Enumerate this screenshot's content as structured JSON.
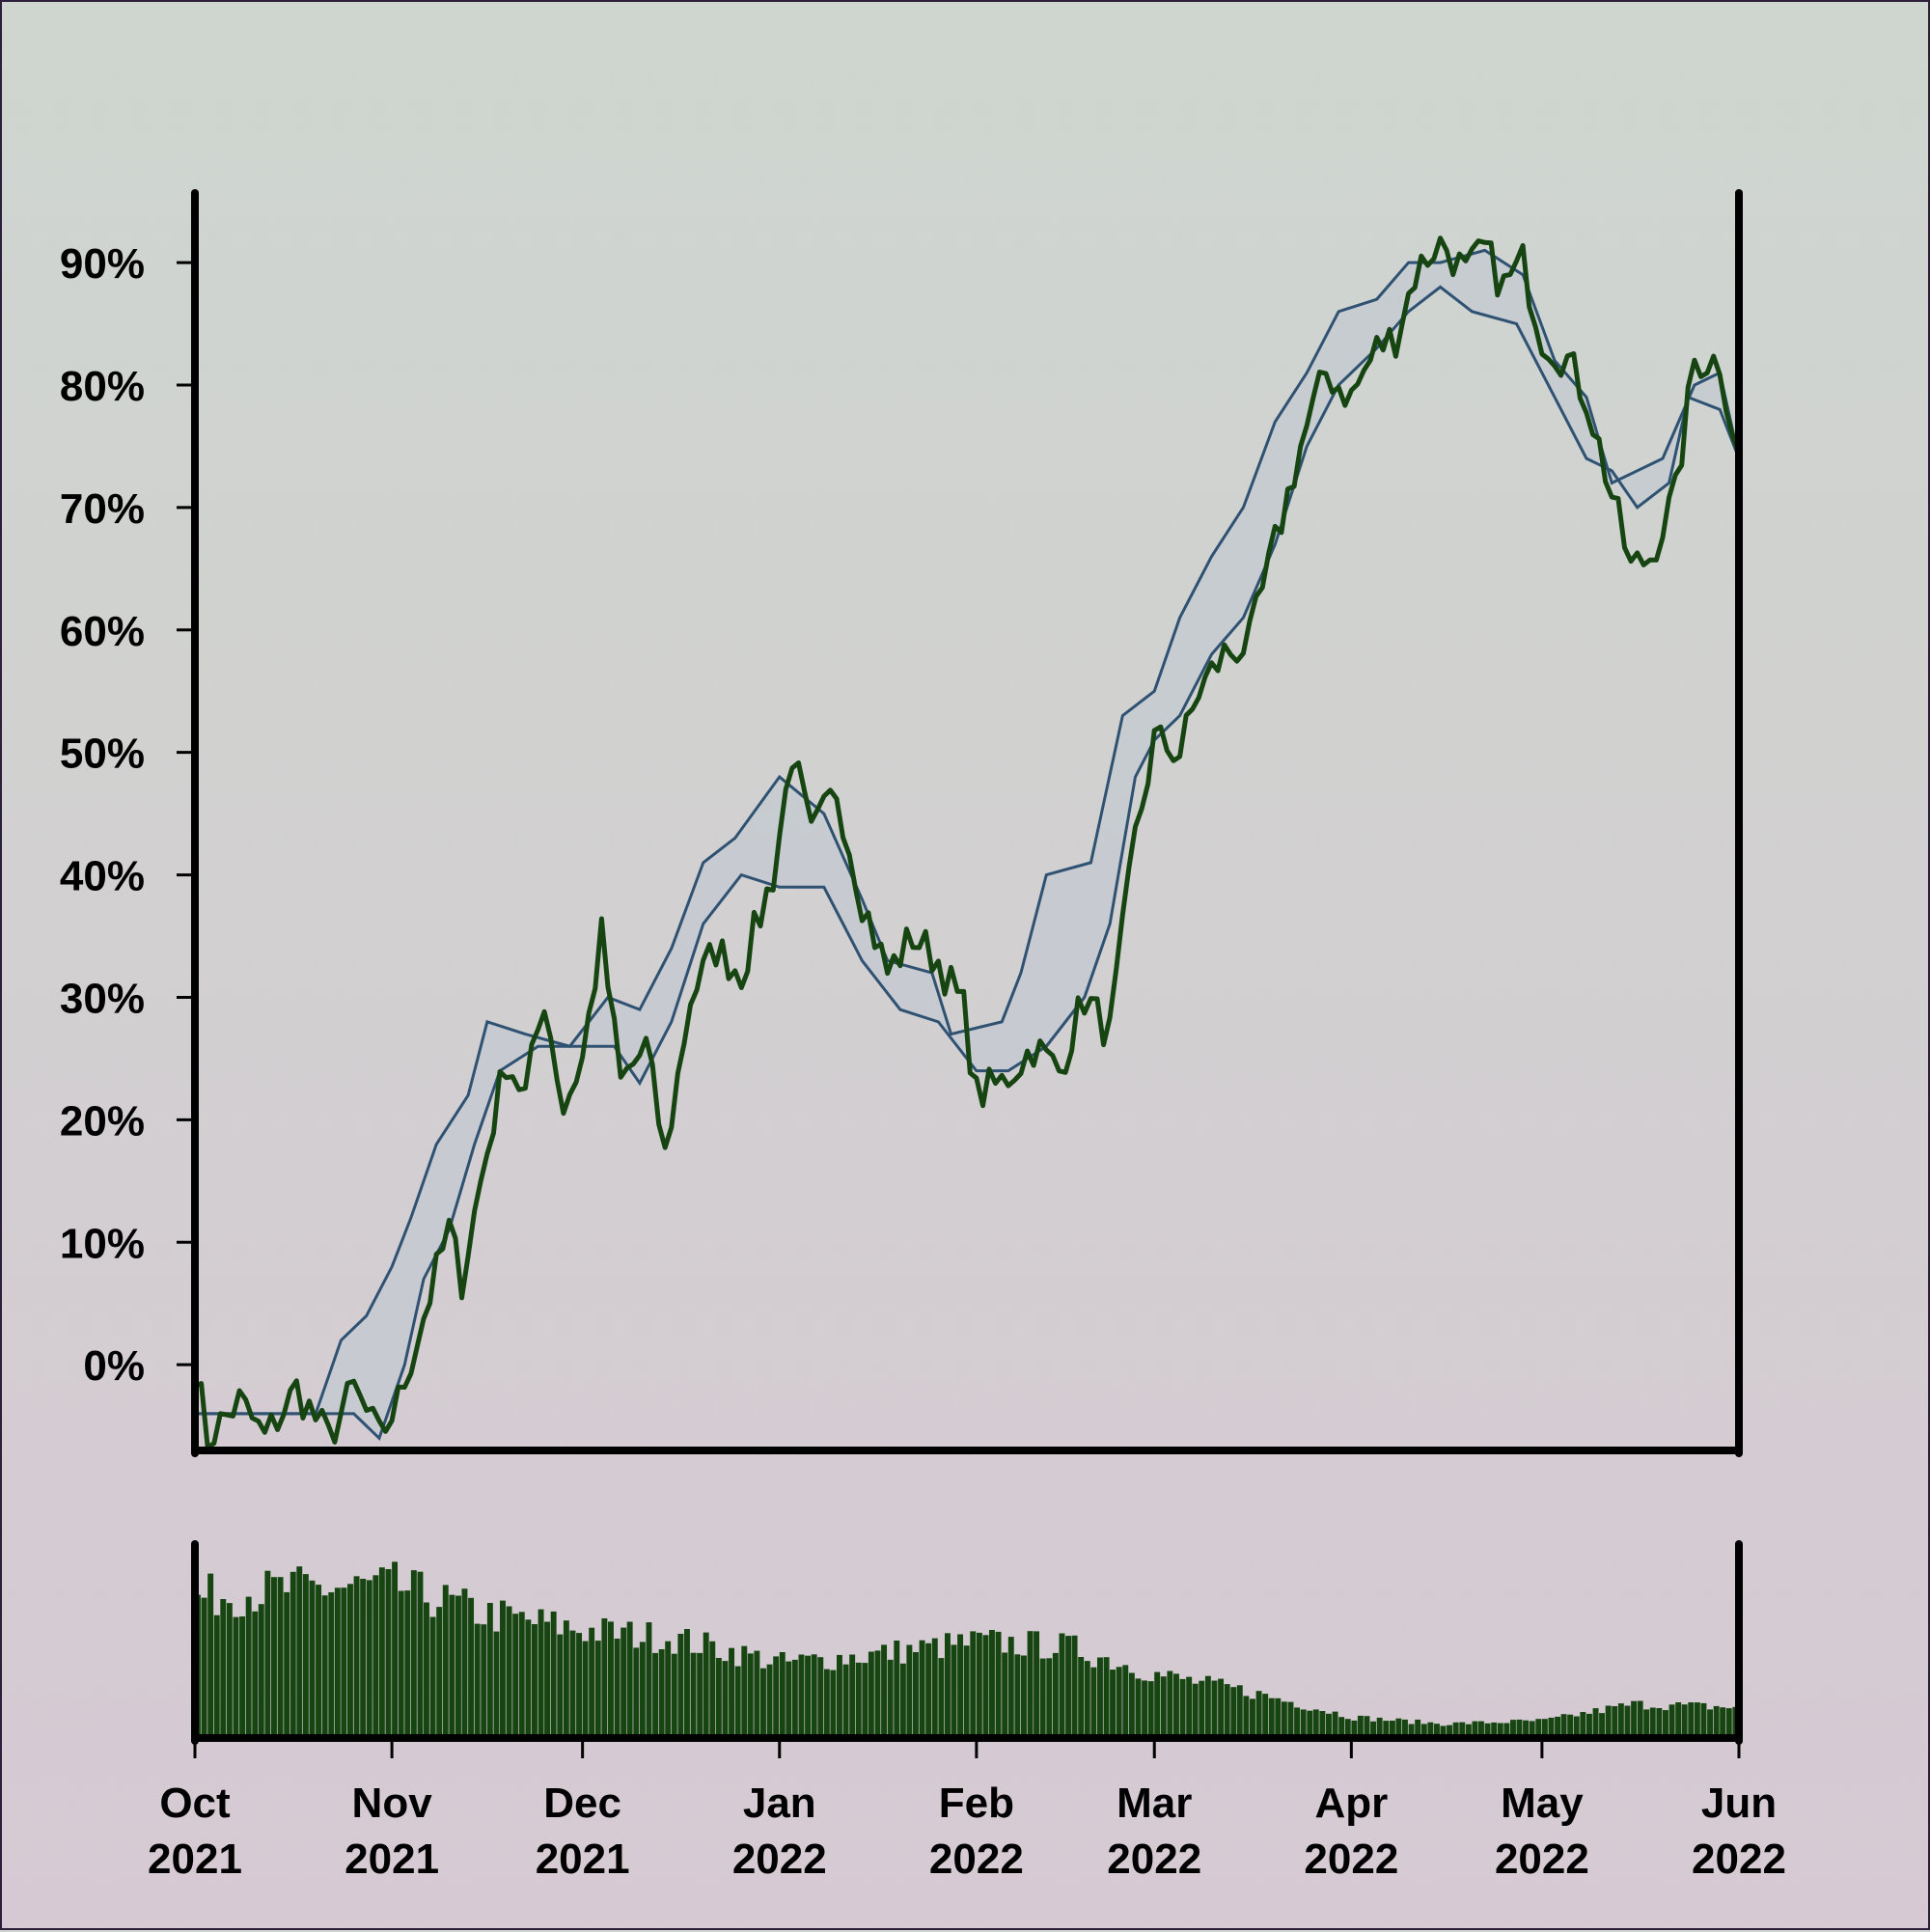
{
  "chart_data": {
    "type": "line",
    "x_axis": {
      "kind": "date",
      "range": [
        "2021-10-01",
        "2022-06-01"
      ],
      "ticks": [
        {
          "date": "2021-10-01",
          "label_month": "Oct",
          "label_year": "2021"
        },
        {
          "date": "2021-11-01",
          "label_month": "Nov",
          "label_year": "2021"
        },
        {
          "date": "2021-12-01",
          "label_month": "Dec",
          "label_year": "2021"
        },
        {
          "date": "2022-01-01",
          "label_month": "Jan",
          "label_year": "2022"
        },
        {
          "date": "2022-02-01",
          "label_month": "Feb",
          "label_year": "2022"
        },
        {
          "date": "2022-03-01",
          "label_month": "Mar",
          "label_year": "2022"
        },
        {
          "date": "2022-04-01",
          "label_month": "Apr",
          "label_year": "2022"
        },
        {
          "date": "2022-05-01",
          "label_month": "May",
          "label_year": "2022"
        },
        {
          "date": "2022-06-01",
          "label_month": "Jun",
          "label_year": "2022"
        }
      ]
    },
    "y_axis": {
      "unit": "%",
      "range": [
        -7,
        93
      ],
      "ticks": [
        0,
        10,
        20,
        30,
        40,
        50,
        60,
        70,
        80,
        90
      ],
      "tick_labels": [
        "0%",
        "10%",
        "20%",
        "30%",
        "40%",
        "50%",
        "60%",
        "70%",
        "80%",
        "90%"
      ]
    },
    "grid": false,
    "colors": {
      "price": "#174512",
      "band": "#2f5273",
      "band_fill": "#c3c9d0",
      "volume": "#174512",
      "axis": "#000000"
    },
    "price_series": [
      [
        "2021-10-01",
        0
      ],
      [
        "2021-10-03",
        -6
      ],
      [
        "2021-10-08",
        -3
      ],
      [
        "2021-10-12",
        -6
      ],
      [
        "2021-10-17",
        -2
      ],
      [
        "2021-10-22",
        -6
      ],
      [
        "2021-10-26",
        -2
      ],
      [
        "2021-10-30",
        -6
      ],
      [
        "2021-11-02",
        -3
      ],
      [
        "2021-11-06",
        4
      ],
      [
        "2021-11-10",
        11
      ],
      [
        "2021-11-12",
        7
      ],
      [
        "2021-11-15",
        15
      ],
      [
        "2021-11-19",
        25
      ],
      [
        "2021-11-22",
        22
      ],
      [
        "2021-11-25",
        30
      ],
      [
        "2021-11-28",
        21
      ],
      [
        "2021-12-01",
        25
      ],
      [
        "2021-12-04",
        35
      ],
      [
        "2021-12-07",
        23
      ],
      [
        "2021-12-11",
        26
      ],
      [
        "2021-12-14",
        17
      ],
      [
        "2021-12-18",
        30
      ],
      [
        "2021-12-22",
        34
      ],
      [
        "2021-12-26",
        32
      ],
      [
        "2021-12-31",
        40
      ],
      [
        "2022-01-03",
        50
      ],
      [
        "2022-01-06",
        43
      ],
      [
        "2022-01-10",
        47
      ],
      [
        "2022-01-14",
        38
      ],
      [
        "2022-01-18",
        32
      ],
      [
        "2022-01-22",
        35
      ],
      [
        "2022-01-26",
        33
      ],
      [
        "2022-01-30",
        29
      ],
      [
        "2022-02-01",
        22
      ],
      [
        "2022-02-05",
        23
      ],
      [
        "2022-02-10",
        26
      ],
      [
        "2022-02-14",
        24
      ],
      [
        "2022-02-18",
        30
      ],
      [
        "2022-02-22",
        27
      ],
      [
        "2022-02-26",
        43
      ],
      [
        "2022-03-01",
        51
      ],
      [
        "2022-03-05",
        50
      ],
      [
        "2022-03-08",
        55
      ],
      [
        "2022-03-12",
        58
      ],
      [
        "2022-03-16",
        59
      ],
      [
        "2022-03-20",
        67
      ],
      [
        "2022-03-24",
        75
      ],
      [
        "2022-03-28",
        81
      ],
      [
        "2022-04-01",
        79
      ],
      [
        "2022-04-05",
        83
      ],
      [
        "2022-04-08",
        84
      ],
      [
        "2022-04-11",
        89
      ],
      [
        "2022-04-15",
        92
      ],
      [
        "2022-04-19",
        89
      ],
      [
        "2022-04-22",
        91
      ],
      [
        "2022-04-25",
        88
      ],
      [
        "2022-04-28",
        90
      ],
      [
        "2022-05-01",
        84
      ],
      [
        "2022-05-05",
        82
      ],
      [
        "2022-05-08",
        79
      ],
      [
        "2022-05-12",
        71
      ],
      [
        "2022-05-15",
        65
      ],
      [
        "2022-05-18",
        66
      ],
      [
        "2022-05-22",
        71
      ],
      [
        "2022-05-25",
        82
      ],
      [
        "2022-05-29",
        82
      ],
      [
        "2022-06-01",
        74
      ]
    ],
    "band_upper_series": [
      [
        "2021-10-01",
        -4
      ],
      [
        "2021-10-20",
        -4
      ],
      [
        "2021-10-24",
        2
      ],
      [
        "2021-10-28",
        4
      ],
      [
        "2021-11-01",
        8
      ],
      [
        "2021-11-04",
        12
      ],
      [
        "2021-11-08",
        18
      ],
      [
        "2021-11-13",
        22
      ],
      [
        "2021-11-16",
        28
      ],
      [
        "2021-11-22",
        27
      ],
      [
        "2021-11-29",
        26
      ],
      [
        "2021-12-05",
        30
      ],
      [
        "2021-12-10",
        29
      ],
      [
        "2021-12-15",
        34
      ],
      [
        "2021-12-20",
        41
      ],
      [
        "2021-12-25",
        43
      ],
      [
        "2022-01-01",
        48
      ],
      [
        "2022-01-08",
        45
      ],
      [
        "2022-01-14",
        38
      ],
      [
        "2022-01-18",
        33
      ],
      [
        "2022-01-25",
        32
      ],
      [
        "2022-01-28",
        27
      ],
      [
        "2022-02-05",
        28
      ],
      [
        "2022-02-08",
        32
      ],
      [
        "2022-02-12",
        40
      ],
      [
        "2022-02-19",
        41
      ],
      [
        "2022-02-24",
        53
      ],
      [
        "2022-03-01",
        55
      ],
      [
        "2022-03-05",
        61
      ],
      [
        "2022-03-10",
        66
      ],
      [
        "2022-03-15",
        70
      ],
      [
        "2022-03-20",
        77
      ],
      [
        "2022-03-25",
        81
      ],
      [
        "2022-03-30",
        86
      ],
      [
        "2022-04-05",
        87
      ],
      [
        "2022-04-10",
        90
      ],
      [
        "2022-04-15",
        90
      ],
      [
        "2022-04-22",
        91
      ],
      [
        "2022-04-28",
        89
      ],
      [
        "2022-05-03",
        82
      ],
      [
        "2022-05-08",
        79
      ],
      [
        "2022-05-12",
        72
      ],
      [
        "2022-05-16",
        73
      ],
      [
        "2022-05-20",
        74
      ],
      [
        "2022-05-25",
        80
      ],
      [
        "2022-05-29",
        81
      ],
      [
        "2022-06-01",
        74
      ]
    ],
    "band_lower_series": [
      [
        "2021-10-01",
        -4
      ],
      [
        "2021-10-26",
        -4
      ],
      [
        "2021-10-30",
        -6
      ],
      [
        "2021-11-03",
        0
      ],
      [
        "2021-11-06",
        7
      ],
      [
        "2021-11-10",
        11
      ],
      [
        "2021-11-14",
        18
      ],
      [
        "2021-11-18",
        24
      ],
      [
        "2021-11-24",
        26
      ],
      [
        "2021-11-30",
        26
      ],
      [
        "2021-12-06",
        26
      ],
      [
        "2021-12-10",
        23
      ],
      [
        "2021-12-15",
        28
      ],
      [
        "2021-12-20",
        36
      ],
      [
        "2021-12-26",
        40
      ],
      [
        "2022-01-01",
        39
      ],
      [
        "2022-01-08",
        39
      ],
      [
        "2022-01-14",
        33
      ],
      [
        "2022-01-20",
        29
      ],
      [
        "2022-01-26",
        28
      ],
      [
        "2022-02-01",
        24
      ],
      [
        "2022-02-06",
        24
      ],
      [
        "2022-02-12",
        26
      ],
      [
        "2022-02-18",
        30
      ],
      [
        "2022-02-22",
        36
      ],
      [
        "2022-02-26",
        48
      ],
      [
        "2022-03-01",
        51
      ],
      [
        "2022-03-05",
        53
      ],
      [
        "2022-03-10",
        58
      ],
      [
        "2022-03-15",
        61
      ],
      [
        "2022-03-20",
        67
      ],
      [
        "2022-03-25",
        75
      ],
      [
        "2022-03-30",
        80
      ],
      [
        "2022-04-05",
        83
      ],
      [
        "2022-04-10",
        86
      ],
      [
        "2022-04-15",
        88
      ],
      [
        "2022-04-20",
        86
      ],
      [
        "2022-04-27",
        85
      ],
      [
        "2022-05-02",
        80
      ],
      [
        "2022-05-08",
        74
      ],
      [
        "2022-05-12",
        73
      ],
      [
        "2022-05-16",
        70
      ],
      [
        "2022-05-21",
        72
      ],
      [
        "2022-05-24",
        79
      ],
      [
        "2022-05-29",
        78
      ],
      [
        "2022-06-01",
        74
      ]
    ],
    "volume_series_relative": [
      [
        "2021-10-01",
        0.85
      ],
      [
        "2021-10-15",
        0.9
      ],
      [
        "2021-11-01",
        0.92
      ],
      [
        "2021-11-15",
        0.75
      ],
      [
        "2021-12-01",
        0.65
      ],
      [
        "2021-12-15",
        0.6
      ],
      [
        "2022-01-01",
        0.45
      ],
      [
        "2022-01-15",
        0.5
      ],
      [
        "2022-02-01",
        0.58
      ],
      [
        "2022-02-15",
        0.55
      ],
      [
        "2022-03-01",
        0.38
      ],
      [
        "2022-03-15",
        0.28
      ],
      [
        "2022-04-01",
        0.12
      ],
      [
        "2022-04-15",
        0.08
      ],
      [
        "2022-05-01",
        0.1
      ],
      [
        "2022-05-15",
        0.2
      ],
      [
        "2022-06-01",
        0.18
      ]
    ]
  }
}
